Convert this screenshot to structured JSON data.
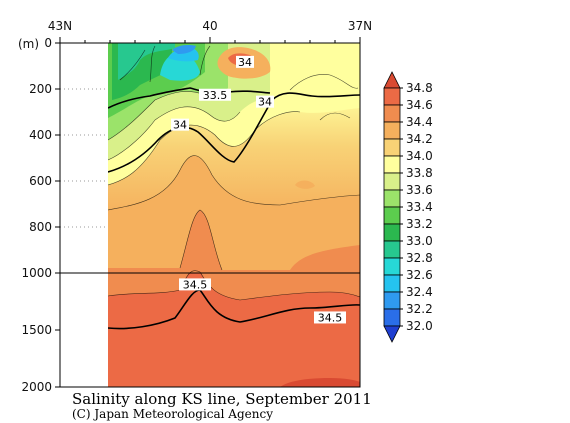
{
  "chart_data": {
    "type": "heatmap",
    "title": "Salinity along KS line, September 2011",
    "credit": "(C) Japan Meteorological Agency",
    "x_ticks": [
      "43N",
      "40",
      "37N"
    ],
    "y_unit": "(m)",
    "y_ticks_upper": [
      "0",
      "200",
      "400",
      "600",
      "800",
      "1000"
    ],
    "y_ticks_lower": [
      "1500",
      "2000"
    ],
    "y_range_upper": [
      0,
      1000
    ],
    "y_range_lower": [
      1000,
      2000
    ],
    "colorbar": {
      "levels": [
        "32.0",
        "32.2",
        "32.4",
        "32.6",
        "32.8",
        "33.0",
        "33.2",
        "33.4",
        "33.6",
        "33.8",
        "34.0",
        "34.2",
        "34.4",
        "34.6",
        "34.8"
      ],
      "colors": [
        "#1f3fd1",
        "#2a6ee8",
        "#2f9af0",
        "#25c3ef",
        "#27d8d6",
        "#27c88f",
        "#2bb84f",
        "#5ccd4e",
        "#9be36a",
        "#d9f08a",
        "#ffff9e",
        "#f8d276",
        "#f5b05d",
        "#f08c4f",
        "#ec6a45",
        "#d94a32"
      ]
    },
    "contour_labels": [
      {
        "text": "34",
        "lat": 39.3,
        "depth": 82
      },
      {
        "text": "33.5",
        "lat": 39.9,
        "depth": 225
      },
      {
        "text": "34",
        "lat": 38.9,
        "depth": 255
      },
      {
        "text": "34",
        "lat": 40.6,
        "depth": 355
      },
      {
        "text": "34.5",
        "lat": 40.3,
        "depth": 1100
      },
      {
        "text": "34.5",
        "lat": 37.6,
        "depth": 1390
      }
    ]
  }
}
